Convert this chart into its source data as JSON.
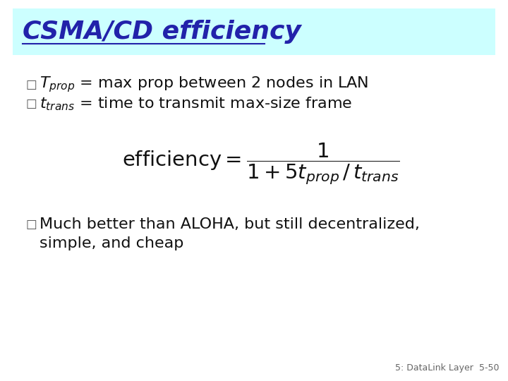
{
  "title": "CSMA/CD efficiency",
  "title_color": "#2222AA",
  "title_bg_color": "#CCFFFF",
  "bg_color": "#FFFFFF",
  "bullet_char": "□",
  "bullet1": "$T_{prop}$ = max prop between 2 nodes in LAN",
  "bullet2": "$t_{trans}$ = time to transmit max-size frame",
  "formula": "$\\mathrm{efficiency} = \\dfrac{1}{1 + 5t_{prop} \\,/\\, t_{trans}}$",
  "bullet3_line1": "Much better than ALOHA, but still decentralized,",
  "bullet3_line2": "simple, and cheap",
  "footer_left": "5: DataLink Layer",
  "footer_right": "5-50",
  "footer_color": "#666666",
  "text_color": "#111111",
  "bullet_marker_color": "#555555"
}
